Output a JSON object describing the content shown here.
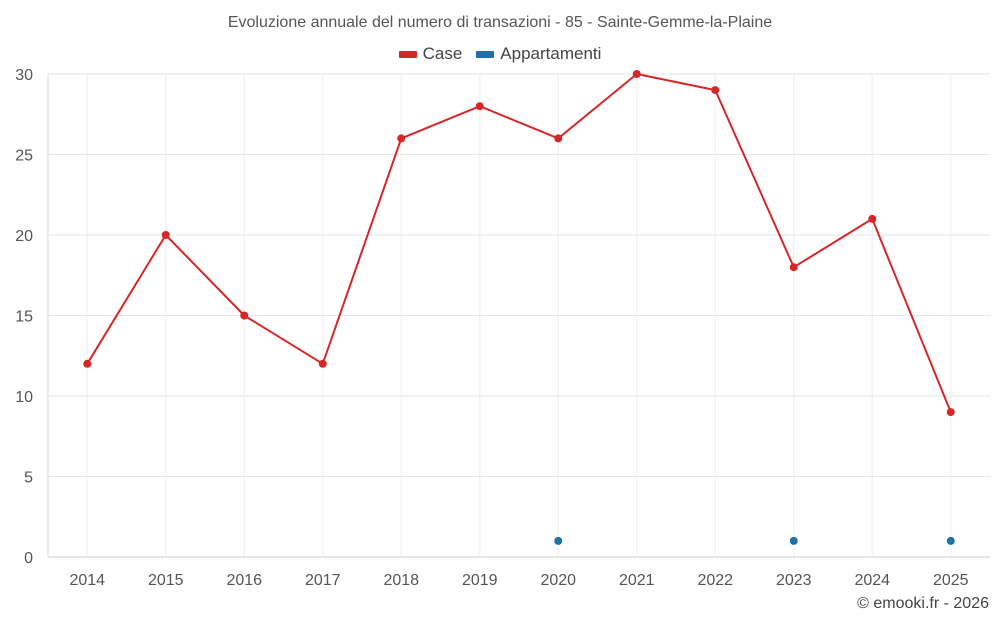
{
  "chart_data": {
    "type": "line",
    "title": "Evoluzione annuale del numero di transazioni - 85 - Sainte-Gemme-la-Plaine",
    "xlabel": "",
    "ylabel": "",
    "categories": [
      "2014",
      "2015",
      "2016",
      "2017",
      "2018",
      "2019",
      "2020",
      "2021",
      "2022",
      "2023",
      "2024",
      "2025"
    ],
    "ylim": [
      0,
      30
    ],
    "yticks": [
      "0",
      "5",
      "10",
      "15",
      "20",
      "25",
      "30"
    ],
    "grid": true,
    "legend_position": "top-center",
    "series": [
      {
        "name": "Case",
        "color": "#d62728",
        "values": [
          12,
          20,
          15,
          12,
          26,
          28,
          26,
          30,
          29,
          18,
          21,
          9
        ]
      },
      {
        "name": "Appartamenti",
        "color": "#1f6fa8",
        "values": [
          null,
          null,
          null,
          null,
          null,
          null,
          1,
          null,
          null,
          1,
          null,
          1
        ]
      }
    ]
  },
  "footer": {
    "credit": "© emooki.fr - 2026"
  }
}
